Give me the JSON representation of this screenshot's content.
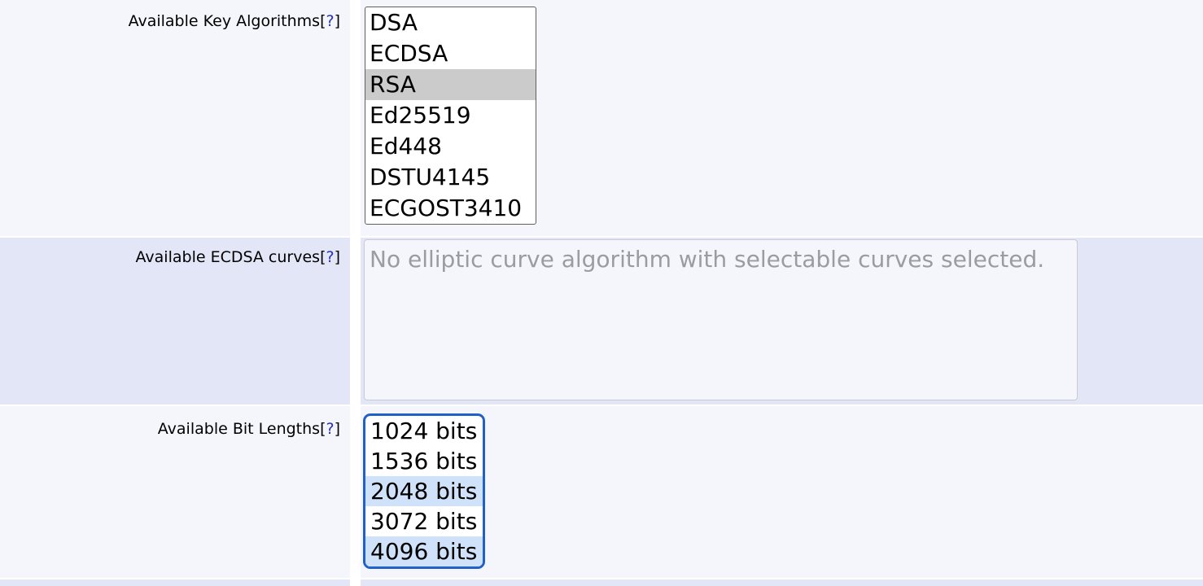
{
  "colors": {
    "row_light": "#f5f6fb",
    "row_lavender": "#e2e6f7",
    "list_border": "#5f5f5f",
    "selected_gray": "#cbcbcb",
    "selected_blue": "#cfe2fa",
    "focus_border": "#2061c9",
    "help_link": "#2832b4",
    "disabled_bg": "#f4f6fc",
    "disabled_border": "#c9cbd4",
    "disabled_text": "#9b9ba1"
  },
  "ui": {
    "bracket_open": "[",
    "bracket_close": "]",
    "help_symbol": "?"
  },
  "rows": {
    "key_algorithms": {
      "label": "Available Key Algorithms",
      "options": [
        {
          "text": "DSA",
          "selected": false
        },
        {
          "text": "ECDSA",
          "selected": false
        },
        {
          "text": "RSA",
          "selected": true
        },
        {
          "text": "Ed25519",
          "selected": false
        },
        {
          "text": "Ed448",
          "selected": false
        },
        {
          "text": "DSTU4145",
          "selected": false
        },
        {
          "text": "ECGOST3410",
          "selected": false
        }
      ]
    },
    "ecdsa_curves": {
      "label": "Available ECDSA curves",
      "empty_message": "No elliptic curve algorithm with selectable curves selected."
    },
    "bit_lengths": {
      "label": "Available Bit Lengths",
      "options": [
        {
          "text": "1024 bits",
          "selected": false
        },
        {
          "text": "1536 bits",
          "selected": false
        },
        {
          "text": "2048 bits",
          "selected": true
        },
        {
          "text": "3072 bits",
          "selected": false
        },
        {
          "text": "4096 bits",
          "selected": true
        }
      ]
    }
  }
}
